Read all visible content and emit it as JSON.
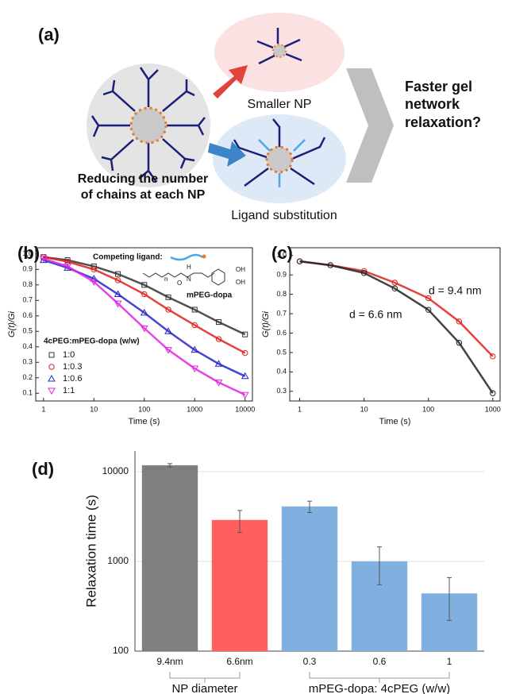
{
  "panel_a": {
    "label": "(a)",
    "smaller_np": "Smaller NP",
    "ligand_substitution": "Ligand substitution",
    "reducing": [
      "Reducing the number",
      "of chains at each NP"
    ],
    "question": [
      "Faster gel",
      "network",
      "relaxation?"
    ]
  },
  "chart_data": [
    {
      "type": "line",
      "panel_label": "(b)",
      "xscale": "log",
      "xlabel": "Time (s)",
      "ylabel": "G(t)/Gi",
      "x": [
        1,
        3,
        10,
        30,
        100,
        300,
        1000,
        3000,
        10000
      ],
      "series": [
        {
          "name": "1:0",
          "color": "#333333",
          "marker": "square",
          "values": [
            0.98,
            0.96,
            0.92,
            0.87,
            0.8,
            0.72,
            0.64,
            0.56,
            0.48
          ]
        },
        {
          "name": "1:0.3",
          "color": "#e0201b",
          "marker": "circle",
          "values": [
            0.98,
            0.95,
            0.9,
            0.83,
            0.74,
            0.64,
            0.54,
            0.45,
            0.36
          ]
        },
        {
          "name": "1:0.6",
          "color": "#2626c8",
          "marker": "triangle",
          "values": [
            0.96,
            0.91,
            0.84,
            0.74,
            0.62,
            0.5,
            0.38,
            0.29,
            0.21
          ]
        },
        {
          "name": "1:1",
          "color": "#e024e0",
          "marker": "down-triangle",
          "values": [
            0.97,
            0.92,
            0.82,
            0.68,
            0.52,
            0.38,
            0.26,
            0.17,
            0.09
          ]
        }
      ],
      "xlim": [
        0.7,
        14000
      ],
      "xticks": [
        1,
        10,
        100,
        1000,
        10000
      ],
      "ylim": [
        0.05,
        1.04
      ],
      "yticks": [
        0.1,
        0.2,
        0.3,
        0.4,
        0.5,
        0.6,
        0.7,
        0.8,
        0.9,
        {
          "value": 1,
          "label": "1.0"
        }
      ],
      "legend_title": "4cPEG:mPEG-dopa (w/w)",
      "annotations": [
        "Competing ligand:",
        "mPEG-dopa"
      ],
      "structure_labels": [
        "n",
        "H",
        "N",
        "O",
        "OH",
        "OH"
      ]
    },
    {
      "type": "line",
      "panel_label": "(c)",
      "xscale": "log",
      "xlabel": "Time (s)",
      "ylabel": "G(t)/Gi",
      "x": [
        1,
        3,
        10,
        30,
        100,
        300,
        1000
      ],
      "series": [
        {
          "name": "d = 9.4 nm",
          "color": "#e0201b",
          "values": [
            0.97,
            0.95,
            0.92,
            0.86,
            0.78,
            0.66,
            0.48
          ]
        },
        {
          "name": "d = 6.6 nm",
          "color": "#222222",
          "values": [
            0.97,
            0.95,
            0.91,
            0.83,
            0.72,
            0.55,
            0.29
          ]
        }
      ],
      "xlim": [
        0.7,
        1300
      ],
      "xticks": [
        1,
        10,
        100,
        1000
      ],
      "ylim": [
        0.25,
        1.04
      ],
      "yticks": [
        0.3,
        0.4,
        0.5,
        0.6,
        0.7,
        0.8,
        0.9,
        {
          "value": 1,
          "label": "1.0"
        }
      ]
    },
    {
      "type": "bar",
      "panel_label": "(d)",
      "yscale": "log",
      "ylabel": "Relaxation time (s)",
      "categories": [
        "9.4nm",
        "6.6nm",
        "0.3",
        "0.6",
        "1"
      ],
      "values": [
        11800,
        2900,
        4100,
        1000,
        440
      ],
      "errors": [
        500,
        800,
        600,
        450,
        220
      ],
      "colors": [
        "#7f7f7f",
        "#ff5f5f",
        "#7fb0e0",
        "#7fb0e0",
        "#7fb0e0"
      ],
      "ylim": [
        100,
        17000
      ],
      "yticks": [
        100,
        1000,
        10000
      ],
      "grid": true,
      "group_labels": [
        "NP diameter",
        "mPEG-dopa: 4cPEG (w/w)"
      ]
    }
  ]
}
